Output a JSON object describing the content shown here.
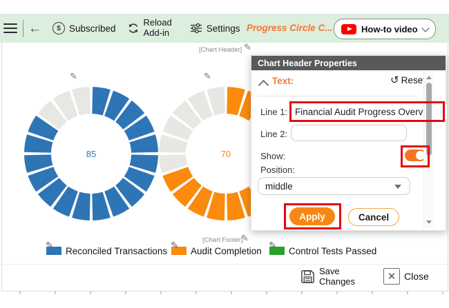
{
  "toolbar": {
    "subscribed": "Subscribed",
    "reload_line1": "Reload",
    "reload_line2": "Add-in",
    "settings": "Settings",
    "title": "Progress Circle C...",
    "howto": "How-to video"
  },
  "canvas": {
    "header_placeholder": "[Chart Header]",
    "footer_placeholder": "[Chart Footer]"
  },
  "chart_data": {
    "type": "segmented-donut-progress",
    "rings": [
      {
        "label": "Reconciled Transactions",
        "value": 85,
        "max": 100,
        "segments": 20,
        "filled_segments": 17,
        "color": "#2E75B6",
        "visible": true
      },
      {
        "label": "Audit Completion",
        "value": 70,
        "max": 100,
        "segments": 20,
        "filled_segments": 14,
        "color": "#FB8A0D",
        "visible": true
      },
      {
        "label": "Control Tests Passed",
        "value": null,
        "segments": 20,
        "filled_segments": null,
        "color": "#27A227",
        "visible": false
      }
    ],
    "empty_segment_color": "#E9E7E3",
    "center_labels": [
      85,
      70
    ]
  },
  "legend": [
    {
      "label": "Reconciled Transactions",
      "color": "#2E75B6"
    },
    {
      "label": "Audit Completion",
      "color": "#FB8A0D"
    },
    {
      "label": "Control Tests Passed",
      "color": "#27A227"
    }
  ],
  "panel": {
    "title": "Chart Header Properties",
    "section": "Text:",
    "reset": "Reset",
    "line1_label": "Line 1:",
    "line1_value": "Financial Audit Progress Overv",
    "line2_label": "Line 2:",
    "line2_value": "",
    "show_label": "Show:",
    "show_on": true,
    "position_label": "Position:",
    "position_value": "middle",
    "apply": "Apply",
    "cancel": "Cancel"
  },
  "actions": {
    "save_line1": "Save",
    "save_line2": "Changes",
    "close": "Close"
  },
  "colors": {
    "toolbar_bg": "#DCEEDE",
    "accent_orange": "#F4751F",
    "panel_header_bg": "#58595B",
    "annotation_red": "#E30613",
    "youtube_red": "#FF0000"
  }
}
